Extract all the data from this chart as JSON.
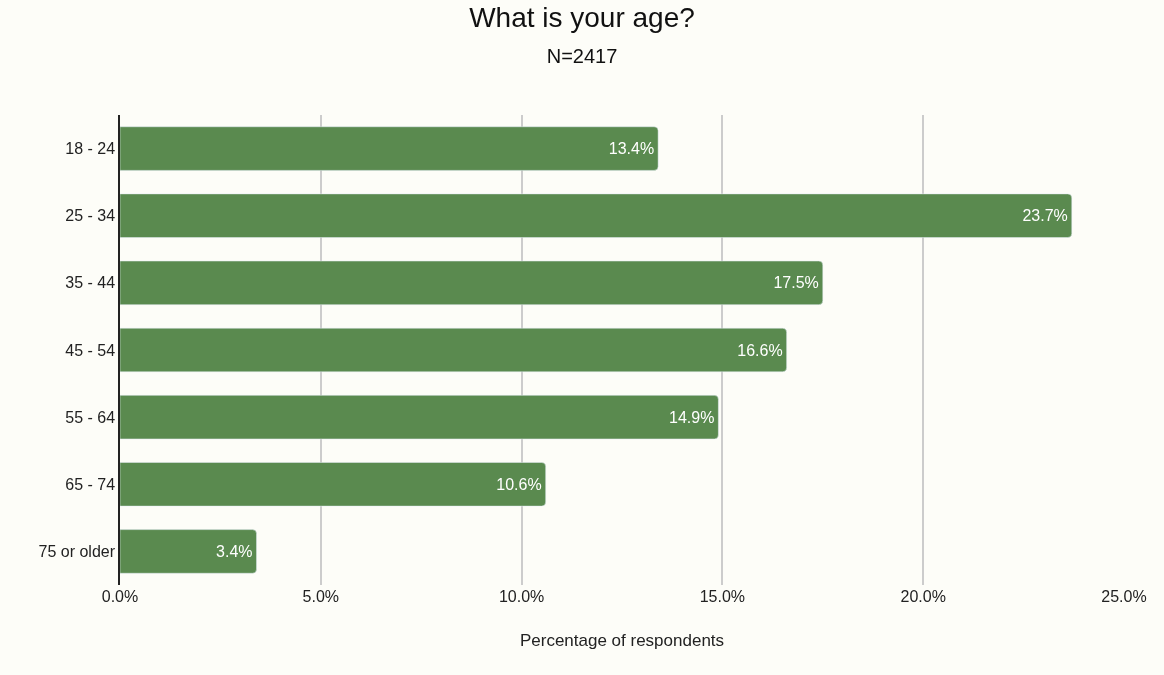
{
  "chart_data": {
    "type": "bar",
    "orientation": "horizontal",
    "title": "What is your age?",
    "subtitle": "N=2417",
    "xlabel": "Percentage of respondents",
    "categories": [
      "18 - 24",
      "25 - 34",
      "35 - 44",
      "45 - 54",
      "55 - 64",
      "65 - 74",
      "75 or older"
    ],
    "values": [
      13.4,
      23.7,
      17.5,
      16.6,
      14.9,
      10.6,
      3.4
    ],
    "value_labels": [
      "13.4%",
      "23.7%",
      "17.5%",
      "16.6%",
      "14.9%",
      "10.6%",
      "3.4%"
    ],
    "color": "#5a8a4f",
    "xlim": [
      0,
      25
    ],
    "xticks": [
      {
        "value": 0,
        "label": "0.0%"
      },
      {
        "value": 5,
        "label": "5.0%"
      },
      {
        "value": 10,
        "label": "10.0%"
      },
      {
        "value": 15,
        "label": "15.0%"
      },
      {
        "value": 20,
        "label": "20.0%"
      },
      {
        "value": 25,
        "label": "25.0%"
      }
    ],
    "grid": "x",
    "legend": false
  }
}
